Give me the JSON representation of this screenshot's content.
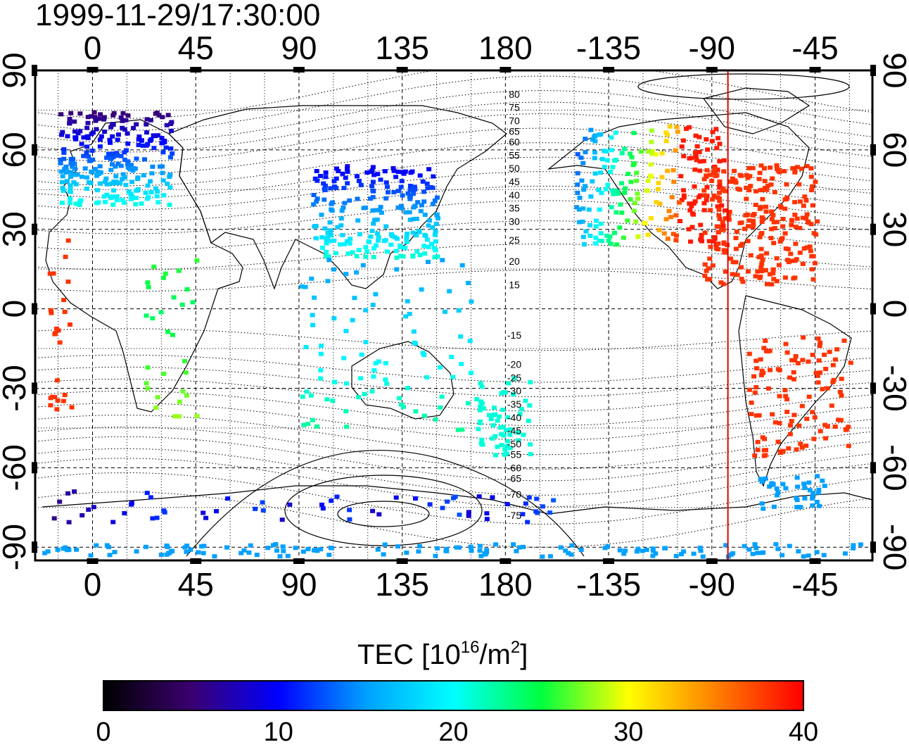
{
  "title": "1999-11-29/17:30:00",
  "map": {
    "top_lon_labels": [
      "0",
      "45",
      "90",
      "135",
      "180",
      "-135",
      "-90",
      "-45"
    ],
    "bottom_lon_labels": [
      "0",
      "45",
      "90",
      "135",
      "180",
      "-135",
      "-90",
      "-45"
    ],
    "left_lat_labels": [
      "90",
      "60",
      "30",
      "0",
      "-30",
      "-60",
      "-90"
    ],
    "right_lat_labels": [
      "90",
      "60",
      "30",
      "0",
      "-30",
      "-60",
      "-90"
    ],
    "lon_ticks": [
      0,
      45,
      90,
      135,
      180,
      -135,
      -90,
      -45
    ],
    "lat_ticks": [
      90,
      60,
      30,
      0,
      -30,
      -60,
      -90
    ],
    "lon_range": [
      -25,
      340
    ],
    "lat_range": [
      -95,
      90
    ],
    "grid": true,
    "meridian_marker": {
      "lon": -83,
      "color": "#e00000"
    },
    "contour_labels": [
      "80",
      "75",
      "70",
      "65",
      "60",
      "55",
      "50",
      "45",
      "40",
      "35",
      "30",
      "25",
      "20",
      "15",
      "-15",
      "-20",
      "-25",
      "-30",
      "-35",
      "-40",
      "-45",
      "-50",
      "-55",
      "-60",
      "-65",
      "-70",
      "-75"
    ],
    "contour_label_lats": [
      81,
      76,
      71,
      67,
      63,
      58,
      53,
      48,
      43,
      38,
      33,
      26,
      18,
      9,
      -10,
      -21,
      -26,
      -31,
      -36,
      -41,
      -46,
      -51,
      -55,
      -60,
      -64,
      -70,
      -78
    ]
  },
  "colorbar": {
    "title_text": "TEC  [10",
    "title_exp": "16",
    "title_mid": "/m",
    "title_exp2": "2",
    "title_end": "]",
    "ticks": [
      "0",
      "10",
      "20",
      "30",
      "40"
    ],
    "range": [
      0,
      40
    ],
    "colormap": [
      "#000000",
      "#3a0070",
      "#0000ff",
      "#00a0ff",
      "#00ffff",
      "#00ff40",
      "#ffff00",
      "#ff8000",
      "#ff0000"
    ]
  }
}
